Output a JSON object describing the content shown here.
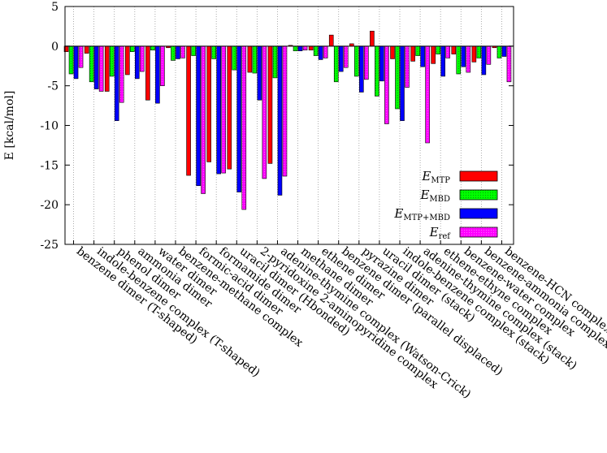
{
  "chart_data": {
    "type": "bar",
    "ylabel": "E [kcal/mol]",
    "ylim": [
      -25,
      5
    ],
    "yticks": [
      5,
      0,
      -5,
      -10,
      -15,
      -20,
      -25
    ],
    "grid": "vertical dotted lines at each category",
    "legend_position": "lower-right",
    "categories": [
      "benzene dimer (T-shaped)",
      "indole-benzene complex (T-shaped)",
      "phenol dimer",
      "ammonia dimer",
      "water dimer",
      "benzene-methane complex",
      "formic-acid dimer",
      "formamide dimer",
      "uracil dimer (Hbonded)",
      "2-pyridoxine 2-aminopyridine complex",
      "adenine-thymine complex (Watson-Crick)",
      "methane dimer",
      "ethene dimer",
      "benzene dimer (parallel displaced)",
      "pyrazine dimer",
      "uracil dimer (stack)",
      "indole-benzene complex (stack)",
      "adenine-thymine complex (stack)",
      "ethene-ethyne complex",
      "benzene-water complex",
      "benzene-ammonia complex",
      "benzene-HCN complex"
    ],
    "series": [
      {
        "name": "E_MTP",
        "label_main": "E",
        "label_sub": "MTP",
        "color": "#ff0000",
        "values": [
          -0.7,
          -0.9,
          -5.7,
          -3.6,
          -6.8,
          -0.2,
          -16.3,
          -14.6,
          -15.5,
          -3.3,
          -14.8,
          0.1,
          -0.5,
          1.4,
          0.3,
          1.9,
          -1.6,
          -1.9,
          -2.2,
          -1.0,
          -2.0,
          -0.2
        ]
      },
      {
        "name": "E_MBD",
        "label_main": "E",
        "label_sub": "MBD",
        "color": "#00ff00",
        "values": [
          -3.5,
          -4.5,
          -3.8,
          -0.7,
          -0.5,
          -1.8,
          -1.2,
          -1.6,
          -3.0,
          -3.4,
          -4.0,
          -0.6,
          -1.2,
          -4.5,
          -3.8,
          -6.3,
          -7.9,
          -1.2,
          -1.0,
          -3.5,
          -1.5,
          -1.5
        ]
      },
      {
        "name": "E_MTP+MBD",
        "label_main": "E",
        "label_sub": "MTP+MBD",
        "color": "#0000ff",
        "values": [
          -4.1,
          -5.4,
          -9.4,
          -4.1,
          -7.2,
          -1.6,
          -17.6,
          -16.1,
          -18.4,
          -6.8,
          -18.8,
          -0.6,
          -1.7,
          -3.2,
          -5.8,
          -4.4,
          -9.4,
          -2.6,
          -3.8,
          -2.6,
          -3.6,
          -1.3
        ]
      },
      {
        "name": "E_ref",
        "label_main": "E",
        "label_sub": "ref",
        "color": "#ff00ff",
        "values": [
          -2.7,
          -5.7,
          -7.1,
          -3.2,
          -5.0,
          -1.5,
          -18.6,
          -16.0,
          -20.6,
          -16.7,
          -16.4,
          -0.5,
          -1.5,
          -2.7,
          -4.2,
          -9.8,
          -5.2,
          -12.2,
          -1.5,
          -3.3,
          -2.3,
          -4.5
        ]
      }
    ]
  }
}
